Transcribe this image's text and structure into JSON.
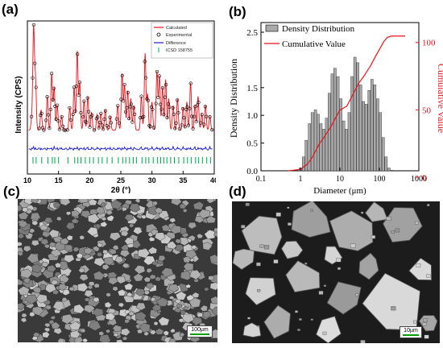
{
  "panels": {
    "a": "(a)",
    "b": "(b)",
    "c": "(c)",
    "d": "(d)"
  },
  "chart_data": [
    {
      "type": "line",
      "panel": "a",
      "xlabel": "2θ (°)",
      "ylabel": "Intensity (CPS)",
      "xlim": [
        10,
        40
      ],
      "xticks": [
        "10",
        "15",
        "20",
        "25",
        "30",
        "35",
        "40"
      ],
      "legend": {
        "position": "top-right",
        "entries": [
          "Calculated",
          "Experimental",
          "Difference",
          "ICSD 158755"
        ]
      },
      "colors": {
        "calculated": "#e8131a",
        "experimental": "#000000",
        "difference": "#1a1ad0",
        "icsd": "#00a550"
      },
      "series": [
        {
          "name": "Calculated",
          "x": [
            10.7,
            11.0,
            11.3,
            12.2,
            13.2,
            13.9,
            14.3,
            14.8,
            15.5,
            16.8,
            17.5,
            18.0,
            18.4,
            19.1,
            19.7,
            20.3,
            21.2,
            21.8,
            22.5,
            23.3,
            24.5,
            25.2,
            25.6,
            26.1,
            26.6,
            27.1,
            28.3,
            28.9,
            29.3,
            30.0,
            30.8,
            31.2,
            31.7,
            32.2,
            32.7,
            33.4,
            34.1,
            35.0,
            35.6,
            36.2,
            36.9,
            37.4,
            38.0,
            38.6,
            39.3
          ],
          "y": [
            0.1,
            0.9,
            0.45,
            0.18,
            0.3,
            0.5,
            0.38,
            0.22,
            0.12,
            0.2,
            0.38,
            0.7,
            0.42,
            0.26,
            0.3,
            0.16,
            0.14,
            0.15,
            0.18,
            0.12,
            0.22,
            0.5,
            0.4,
            0.35,
            0.28,
            0.22,
            0.3,
            0.68,
            0.32,
            0.25,
            0.52,
            0.48,
            0.38,
            0.45,
            0.28,
            0.22,
            0.28,
            0.2,
            0.25,
            0.42,
            0.22,
            0.3,
            0.14,
            0.22,
            0.12
          ]
        },
        {
          "name": "Difference",
          "values_note": "flat line near zero offset"
        }
      ]
    },
    {
      "type": "bar",
      "panel": "b",
      "xlabel": "Diameter (μm)",
      "ylabel": "Density Distribution",
      "ylabel_right": "Cumulative Value",
      "xscale": "log",
      "xlim": [
        0.1,
        1000
      ],
      "xticks": [
        "0.1",
        "1",
        "10",
        "100",
        "1000"
      ],
      "ylim": [
        0,
        2.5
      ],
      "yticks": [
        "0.0",
        "0.5",
        "1.0",
        "1.5",
        "2.5"
      ],
      "ylim_right": [
        0,
        110
      ],
      "yticks_right": [
        "0",
        "50",
        "100"
      ],
      "legend": {
        "position": "top-left",
        "entries": [
          "Density Distribution",
          "Cumulative Value"
        ]
      },
      "colors": {
        "bars": "#a9a9a9",
        "cumulative": "#e8131a",
        "right_axis": "#e8131a"
      },
      "series": [
        {
          "name": "Density Distribution",
          "x": [
            1.0,
            1.2,
            1.4,
            1.7,
            2.0,
            2.4,
            2.8,
            3.3,
            3.9,
            4.6,
            5.4,
            6.4,
            7.5,
            8.9,
            10.5,
            12.4,
            14.6,
            17.2,
            20.3,
            24.0,
            28.3,
            33.4,
            39.4,
            46.5,
            54.9,
            64.8,
            76.5,
            90.2,
            106,
            125,
            148,
            175,
            206
          ],
          "y": [
            0.05,
            0.25,
            0.55,
            0.85,
            1.05,
            1.1,
            1.02,
            0.85,
            0.75,
            0.95,
            1.4,
            1.75,
            1.85,
            1.7,
            1.3,
            0.9,
            0.75,
            1.05,
            1.7,
            2.05,
            1.95,
            1.55,
            1.25,
            1.2,
            1.45,
            1.65,
            1.55,
            1.3,
            1.05,
            0.6,
            0.25,
            0.05,
            0.01
          ]
        },
        {
          "name": "Cumulative Value",
          "x": [
            0.5,
            1.0,
            1.5,
            2.0,
            3.0,
            4.0,
            6.0,
            8.0,
            10,
            15,
            20,
            30,
            40,
            60,
            80,
            100,
            130,
            160,
            200,
            300,
            450
          ],
          "y": [
            0,
            1,
            5,
            10,
            20,
            25,
            33,
            40,
            45,
            48,
            55,
            65,
            70,
            78,
            85,
            90,
            96,
            99,
            100,
            100,
            100
          ]
        }
      ]
    }
  ],
  "sem": {
    "c_scale": "100µm",
    "d_scale": "10µm"
  }
}
